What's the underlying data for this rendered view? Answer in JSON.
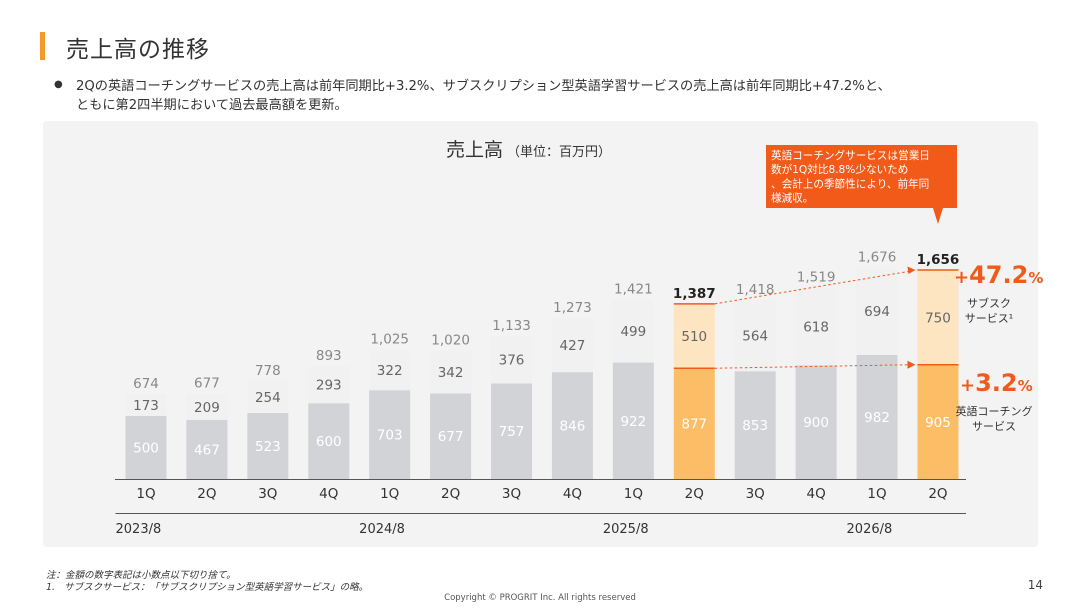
{
  "slide": {
    "title": "売上高の推移",
    "lead_line1": "2Qの英語コーチングサービスの売上高は前年同期比+3.2%、サブスクリプション型英語学習サービスの売上高は前年同期比+47.2%と、",
    "lead_line2": "ともに第2四半期において過去最高額を更新。",
    "footnote": "注：金額の数字表記は小数点以下切り捨て。\n1.   サブスクサービス：「サブスクリプション型英語学習サービス」の略。",
    "page_number": "14",
    "copyright": "Copyright © PROGRIT Inc. All rights reserved"
  },
  "chart_data": {
    "type": "bar",
    "stacked": true,
    "title": "売上高",
    "title_unit": "（単位：百万円）",
    "categories": [
      "1Q",
      "2Q",
      "3Q",
      "4Q",
      "1Q",
      "2Q",
      "3Q",
      "4Q",
      "1Q",
      "2Q",
      "3Q",
      "4Q",
      "1Q",
      "2Q"
    ],
    "fiscal_years": [
      {
        "label": "2023/8",
        "start": 0,
        "end": 3
      },
      {
        "label": "2024/8",
        "start": 4,
        "end": 7
      },
      {
        "label": "2025/8",
        "start": 8,
        "end": 11
      },
      {
        "label": "2026/8",
        "start": 12,
        "end": 13
      }
    ],
    "series": [
      {
        "values": [
          500,
          467,
          523,
          600,
          703,
          677,
          757,
          846,
          922,
          877,
          853,
          900,
          982,
          905
        ]
      },
      {
        "values": [
          173,
          209,
          254,
          293,
          322,
          342,
          376,
          427,
          499,
          510,
          564,
          618,
          694,
          750
        ]
      }
    ],
    "totals": [
      674,
      677,
      778,
      893,
      1025,
      1020,
      1133,
      1273,
      1421,
      1387,
      1418,
      1519,
      1676,
      1656
    ],
    "highlight_indices": [
      9,
      13
    ],
    "ylim": [
      0,
      1800
    ],
    "grid": false,
    "callout": "英語コーチングサービスは営業日数が1Q対比8.8%少ないため、会計上の季節性により、前年同様減収。",
    "growth_labels": [
      {
        "value": "+47.2%",
        "name": "サブスク\nサービス¹"
      },
      {
        "value": "+3.2%",
        "name": "英語コーチング\nサービス"
      }
    ],
    "colors": {
      "coaching": "#d2d3d7",
      "subscription": "#f1f1f1",
      "coaching_highlight": "#fbbd66",
      "subscription_highlight": "#fde5c2",
      "accent": "#f05a1a",
      "callout_bg": "#f25a1a"
    }
  }
}
